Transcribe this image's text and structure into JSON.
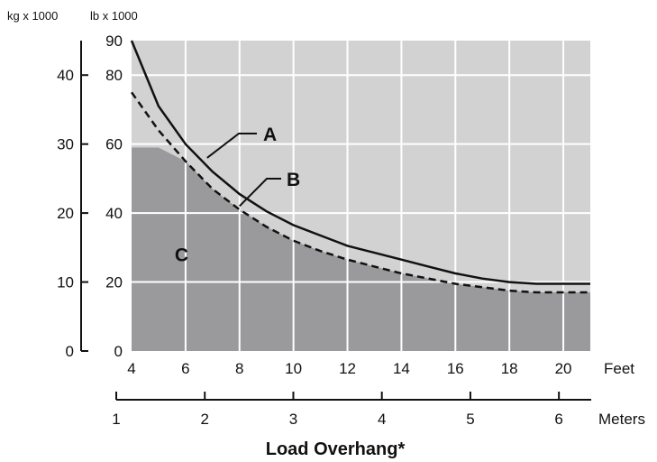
{
  "chart_data": {
    "type": "line",
    "title": "",
    "xlabel": "Load Overhang*",
    "x_unit_primary": "Feet",
    "x_unit_secondary": "Meters",
    "y_unit_left": "kg x 1000",
    "y_unit_right": "lb x 1000",
    "x_range_feet": [
      4,
      21
    ],
    "y_range_lb": [
      0,
      90
    ],
    "y_range_kg": [
      0,
      45
    ],
    "x_ticks_feet": [
      "4",
      "6",
      "8",
      "10",
      "12",
      "14",
      "16",
      "18",
      "20"
    ],
    "x_ticks_meters": [
      "1",
      "2",
      "3",
      "4",
      "5",
      "6"
    ],
    "y_ticks_lb": [
      "0",
      "20",
      "40",
      "60",
      "80",
      "90"
    ],
    "y_ticks_kg": [
      "0",
      "10",
      "20",
      "30",
      "40"
    ],
    "grid": true,
    "series": [
      {
        "name": "A",
        "style": "solid",
        "x": [
          4,
          5,
          6,
          7,
          8,
          9,
          10,
          11,
          12,
          13,
          14,
          15,
          16,
          17,
          18,
          19,
          20,
          21
        ],
        "y": [
          90,
          71,
          60,
          52,
          45.5,
          40.5,
          36.5,
          33.5,
          30.5,
          28.5,
          26.5,
          24.5,
          22.5,
          21,
          20,
          19.5,
          19.5,
          19.5
        ]
      },
      {
        "name": "B",
        "style": "dashed",
        "x": [
          4,
          5,
          6,
          7,
          8,
          9,
          10,
          11,
          12,
          13,
          14,
          15,
          16,
          17,
          18,
          19,
          20,
          21
        ],
        "y": [
          75,
          64,
          55,
          47,
          41,
          36,
          32,
          29,
          26.5,
          24.5,
          22.5,
          21,
          19.5,
          18.5,
          17.5,
          17,
          17,
          17
        ]
      },
      {
        "name": "C",
        "style": "area",
        "x": [
          4,
          5,
          6,
          7,
          8,
          9,
          10,
          11,
          12,
          13,
          14,
          15,
          16,
          17,
          18,
          19,
          20,
          21
        ],
        "y": [
          59,
          59,
          55,
          47,
          41,
          36,
          32,
          29,
          26.5,
          24.5,
          22.5,
          21,
          19.5,
          18.5,
          17.5,
          17,
          17,
          17
        ]
      }
    ],
    "colors": {
      "background_region": "#d2d2d3",
      "area_c": "#9a9a9d",
      "grid": "#ffffff",
      "curve": "#111111"
    }
  }
}
